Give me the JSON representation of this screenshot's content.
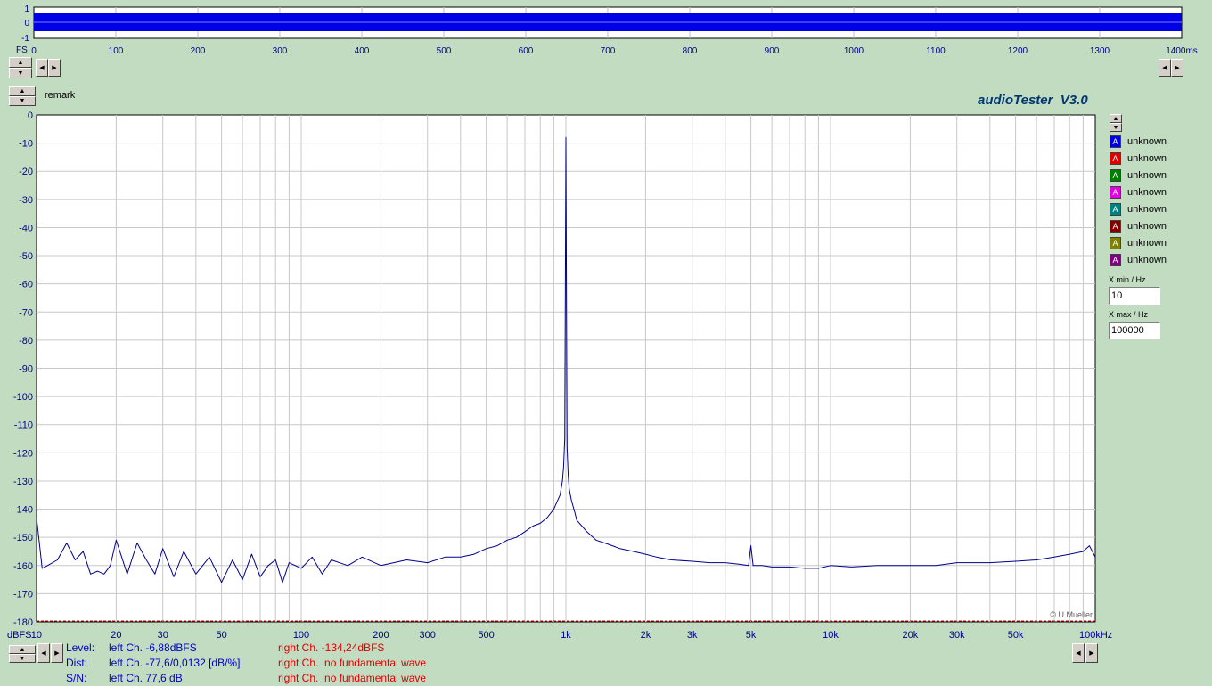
{
  "app_title": "audioTester  V3.0",
  "remark_label": "remark",
  "copyright": "© U.Mueller",
  "icons": {
    "up": "triangle-up",
    "down": "triangle-down",
    "left": "triangle-left",
    "right": "triangle-right"
  },
  "overview": {
    "y_ticks": [
      "1",
      "0",
      "-1"
    ],
    "fs_label": "FS",
    "x_ticks": [
      "0",
      "100",
      "200",
      "300",
      "400",
      "500",
      "600",
      "700",
      "800",
      "900",
      "1000",
      "1100",
      "1200",
      "1300",
      "1400ms"
    ],
    "x_range_ms": [
      0,
      1400
    ],
    "signal_extent_ms": 1400,
    "signal_color": "#0000e6"
  },
  "legend": [
    {
      "letter": "A",
      "label": "unknown",
      "color": "#0000e0"
    },
    {
      "letter": "A",
      "label": "unknown",
      "color": "#e00000"
    },
    {
      "letter": "A",
      "label": "unknown",
      "color": "#008000"
    },
    {
      "letter": "A",
      "label": "unknown",
      "color": "#e000e0"
    },
    {
      "letter": "A",
      "label": "unknown",
      "color": "#008080"
    },
    {
      "letter": "A",
      "label": "unknown",
      "color": "#800000"
    },
    {
      "letter": "A",
      "label": "unknown",
      "color": "#808000"
    },
    {
      "letter": "A",
      "label": "unknown",
      "color": "#800080"
    }
  ],
  "x_min": {
    "label": "X min / Hz",
    "value": "10"
  },
  "x_max": {
    "label": "X max / Hz",
    "value": "100000"
  },
  "status": {
    "level_label": "Level:",
    "level_left": "left Ch. -6,88dBFS",
    "level_right": "right Ch. -134,24dBFS",
    "dist_label": "Dist:",
    "dist_left": "left Ch. -77,6/0,0132 [dB/%]",
    "dist_right": "right Ch.  no fundamental wave",
    "sn_label": "S/N:",
    "sn_left": "left Ch. 77,6 dB",
    "sn_right": "right Ch.  no fundamental wave"
  },
  "chart_data": {
    "type": "line",
    "x_scale": "log",
    "xlim": [
      10,
      100000
    ],
    "ylim": [
      -180,
      0
    ],
    "y_unit_label": "dBFS",
    "x_unit_label": "Hz",
    "y_ticks": [
      0,
      -10,
      -20,
      -30,
      -40,
      -50,
      -60,
      -70,
      -80,
      -90,
      -100,
      -110,
      -120,
      -130,
      -140,
      -150,
      -160,
      -170,
      -180
    ],
    "x_ticks": [
      {
        "value": 10,
        "label": "10"
      },
      {
        "value": 20,
        "label": "20"
      },
      {
        "value": 30,
        "label": "30"
      },
      {
        "value": 50,
        "label": "50"
      },
      {
        "value": 100,
        "label": "100"
      },
      {
        "value": 200,
        "label": "200"
      },
      {
        "value": 300,
        "label": "300"
      },
      {
        "value": 500,
        "label": "500"
      },
      {
        "value": 1000,
        "label": "1k"
      },
      {
        "value": 2000,
        "label": "2k"
      },
      {
        "value": 3000,
        "label": "3k"
      },
      {
        "value": 5000,
        "label": "5k"
      },
      {
        "value": 10000,
        "label": "10k"
      },
      {
        "value": 20000,
        "label": "20k"
      },
      {
        "value": 30000,
        "label": "30k"
      },
      {
        "value": 50000,
        "label": "50k"
      },
      {
        "value": 100000,
        "label": "100kHz"
      }
    ],
    "grid": true,
    "reference_line": {
      "y": -180,
      "color": "#e00000"
    },
    "series": [
      {
        "color": "#00008c",
        "x": [
          10,
          10.5,
          11,
          12,
          13,
          14,
          15,
          16,
          17,
          18,
          19,
          20,
          22,
          24,
          26,
          28,
          30,
          33,
          36,
          40,
          45,
          50,
          55,
          60,
          65,
          70,
          75,
          80,
          85,
          90,
          100,
          110,
          120,
          130,
          150,
          170,
          200,
          250,
          300,
          350,
          400,
          450,
          500,
          550,
          600,
          650,
          700,
          750,
          800,
          850,
          900,
          920,
          950,
          970,
          980,
          990,
          995,
          1000,
          1005,
          1010,
          1020,
          1030,
          1050,
          1080,
          1100,
          1150,
          1200,
          1300,
          1400,
          1500,
          1600,
          1800,
          2000,
          2200,
          2500,
          3000,
          3500,
          4000,
          4500,
          4900,
          5000,
          5100,
          5500,
          6000,
          7000,
          8000,
          9000,
          10000,
          12000,
          15000,
          20000,
          25000,
          30000,
          40000,
          50000,
          60000,
          70000,
          80000,
          90000,
          95000,
          100000
        ],
        "y": [
          -143,
          -161,
          -160,
          -158,
          -152,
          -158,
          -155,
          -163,
          -162,
          -163,
          -160,
          -151,
          -163,
          -152,
          -158,
          -163,
          -154,
          -164,
          -155,
          -163,
          -157,
          -166,
          -158,
          -165,
          -156,
          -164,
          -160,
          -158,
          -166,
          -159,
          -161,
          -157,
          -163,
          -158,
          -160,
          -157,
          -160,
          -158,
          -159,
          -157,
          -157,
          -156,
          -154,
          -153,
          -151,
          -150,
          -148,
          -146,
          -145,
          -143,
          -140,
          -138,
          -135,
          -130,
          -125,
          -115,
          -60,
          -8,
          -60,
          -118,
          -128,
          -133,
          -137,
          -141,
          -144,
          -146,
          -148,
          -151,
          -152,
          -153,
          -154,
          -155,
          -156,
          -157,
          -158,
          -158.5,
          -159,
          -159,
          -159.5,
          -160,
          -153,
          -160,
          -160,
          -160.5,
          -160.5,
          -161,
          -161,
          -160,
          -160.5,
          -160,
          -160,
          -160,
          -159,
          -159,
          -158.5,
          -158,
          -157,
          -156,
          -155,
          -153,
          -157
        ]
      }
    ]
  }
}
